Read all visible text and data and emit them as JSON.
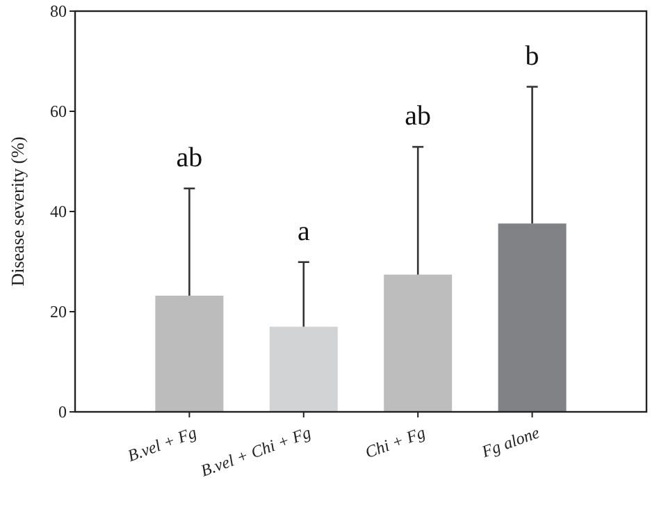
{
  "chart_data": {
    "type": "bar",
    "ylabel": "Disease severity (%)",
    "categories": [
      "B.vel + Fg",
      "B.vel + Chi + Fg",
      "Chi + Fg",
      "Fg alone"
    ],
    "values": [
      23.2,
      17.0,
      27.4,
      37.6
    ],
    "colors": [
      "#bcbcbc",
      "#d2d3d5",
      "#bdbdbd",
      "#808285"
    ],
    "errors": [
      [
        23.2,
        44.6
      ],
      [
        17.0,
        29.9
      ],
      [
        27.4,
        52.9
      ],
      [
        37.6,
        64.9
      ]
    ],
    "ylim": [
      0,
      80
    ],
    "yticks": [
      0,
      20,
      40,
      60,
      80
    ],
    "grid": false,
    "annotations": [
      "ab",
      "a",
      "ab",
      "b"
    ]
  }
}
